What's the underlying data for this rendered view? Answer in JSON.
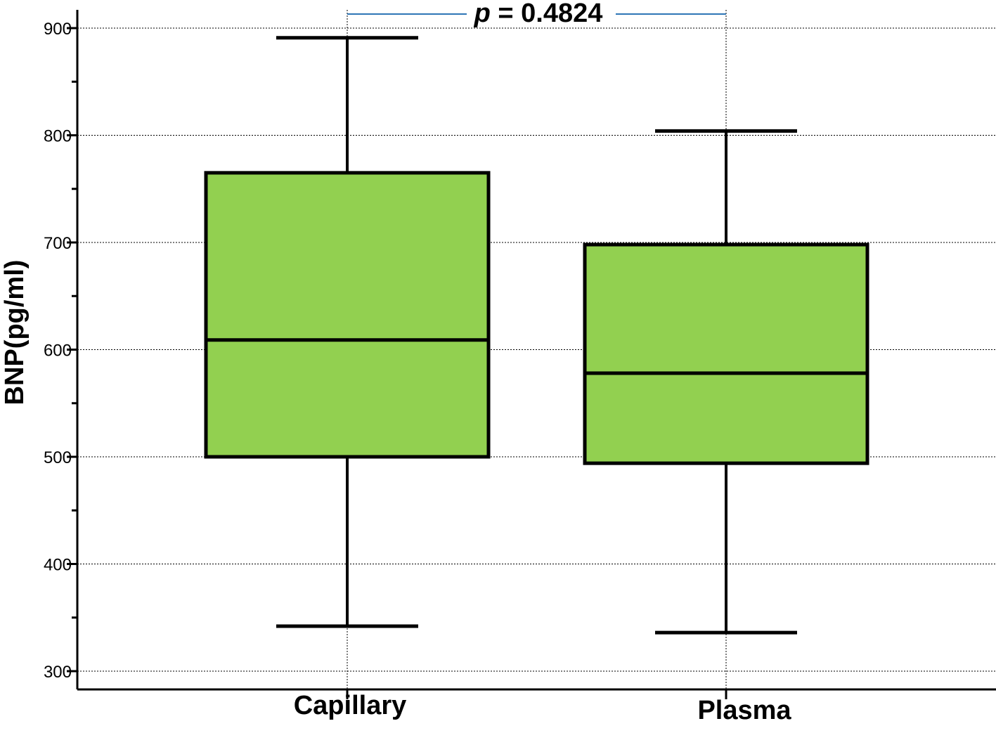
{
  "chart_data": {
    "type": "box",
    "categories": [
      "Capillary",
      "Plasma"
    ],
    "boxes": [
      {
        "name": "Capillary",
        "min": 342,
        "q1": 500,
        "median": 609,
        "q3": 765,
        "max": 891
      },
      {
        "name": "Plasma",
        "min": 336,
        "q1": 494,
        "median": 578,
        "q3": 698,
        "max": 804
      }
    ],
    "ylabel": "BNP(pg/ml)",
    "xlabel": "",
    "ylim": [
      284,
      915
    ],
    "yticks": [
      300,
      400,
      500,
      600,
      700,
      800,
      900
    ],
    "y_minor_step": 50,
    "grid": true,
    "annotation": {
      "p_symbol": "p",
      "text": " = 0.4824"
    },
    "colors": {
      "box_fill": "#92d050",
      "box_stroke": "#000000",
      "grid": "#000000",
      "bracket": "#2e75b6"
    }
  }
}
